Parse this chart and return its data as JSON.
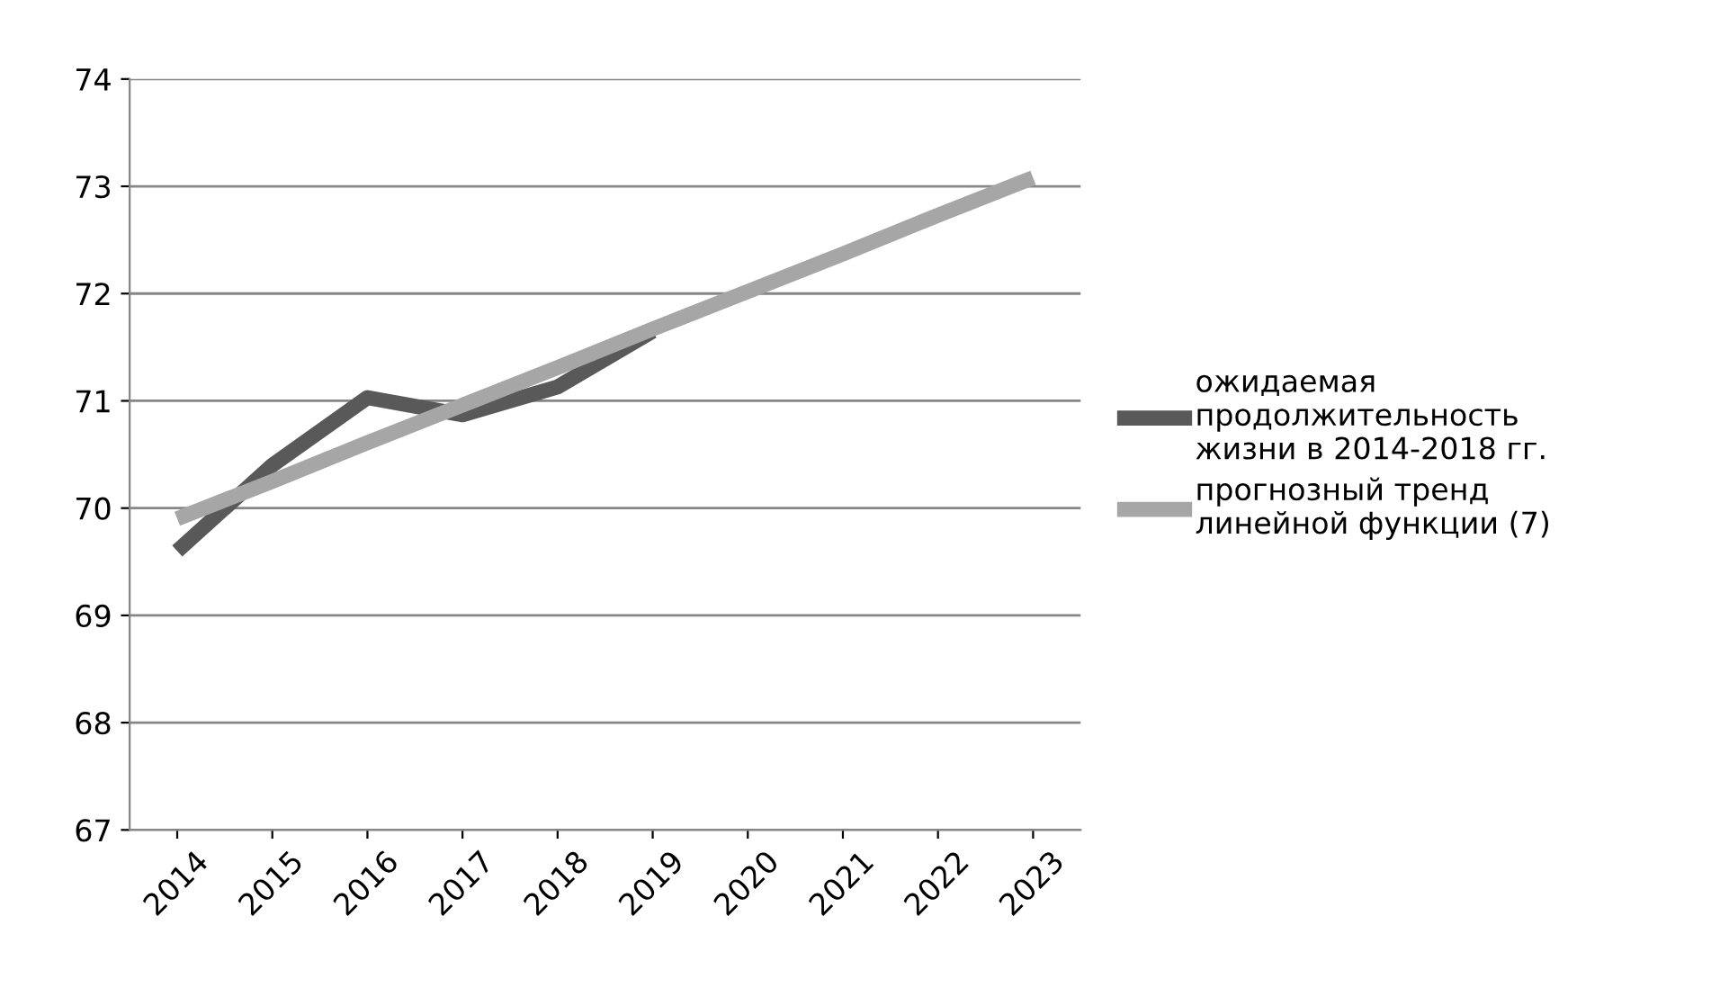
{
  "chart_data": {
    "type": "line",
    "categories": [
      "2014",
      "2015",
      "2016",
      "2017",
      "2018",
      "2019",
      "2020",
      "2021",
      "2022",
      "2023"
    ],
    "series": [
      {
        "name": "ожидаемая\nпродолжительность\nжизни в 2014-2018 гг.",
        "color": "#595959",
        "values": [
          69.6,
          70.4,
          71.03,
          70.87,
          71.13,
          71.65,
          null,
          null,
          null,
          null
        ]
      },
      {
        "name": "прогнозный тренд\nлинейной функции (7)",
        "color": "#a6a6a6",
        "values": [
          69.9,
          70.25,
          70.61,
          70.96,
          71.31,
          71.67,
          72.02,
          72.37,
          72.73,
          73.08
        ]
      }
    ],
    "ylim": [
      67,
      74
    ],
    "yticks": [
      67,
      68,
      69,
      70,
      71,
      72,
      73,
      74
    ],
    "grid": "y",
    "legend": "right",
    "marker": "none",
    "line_style": "solid"
  }
}
